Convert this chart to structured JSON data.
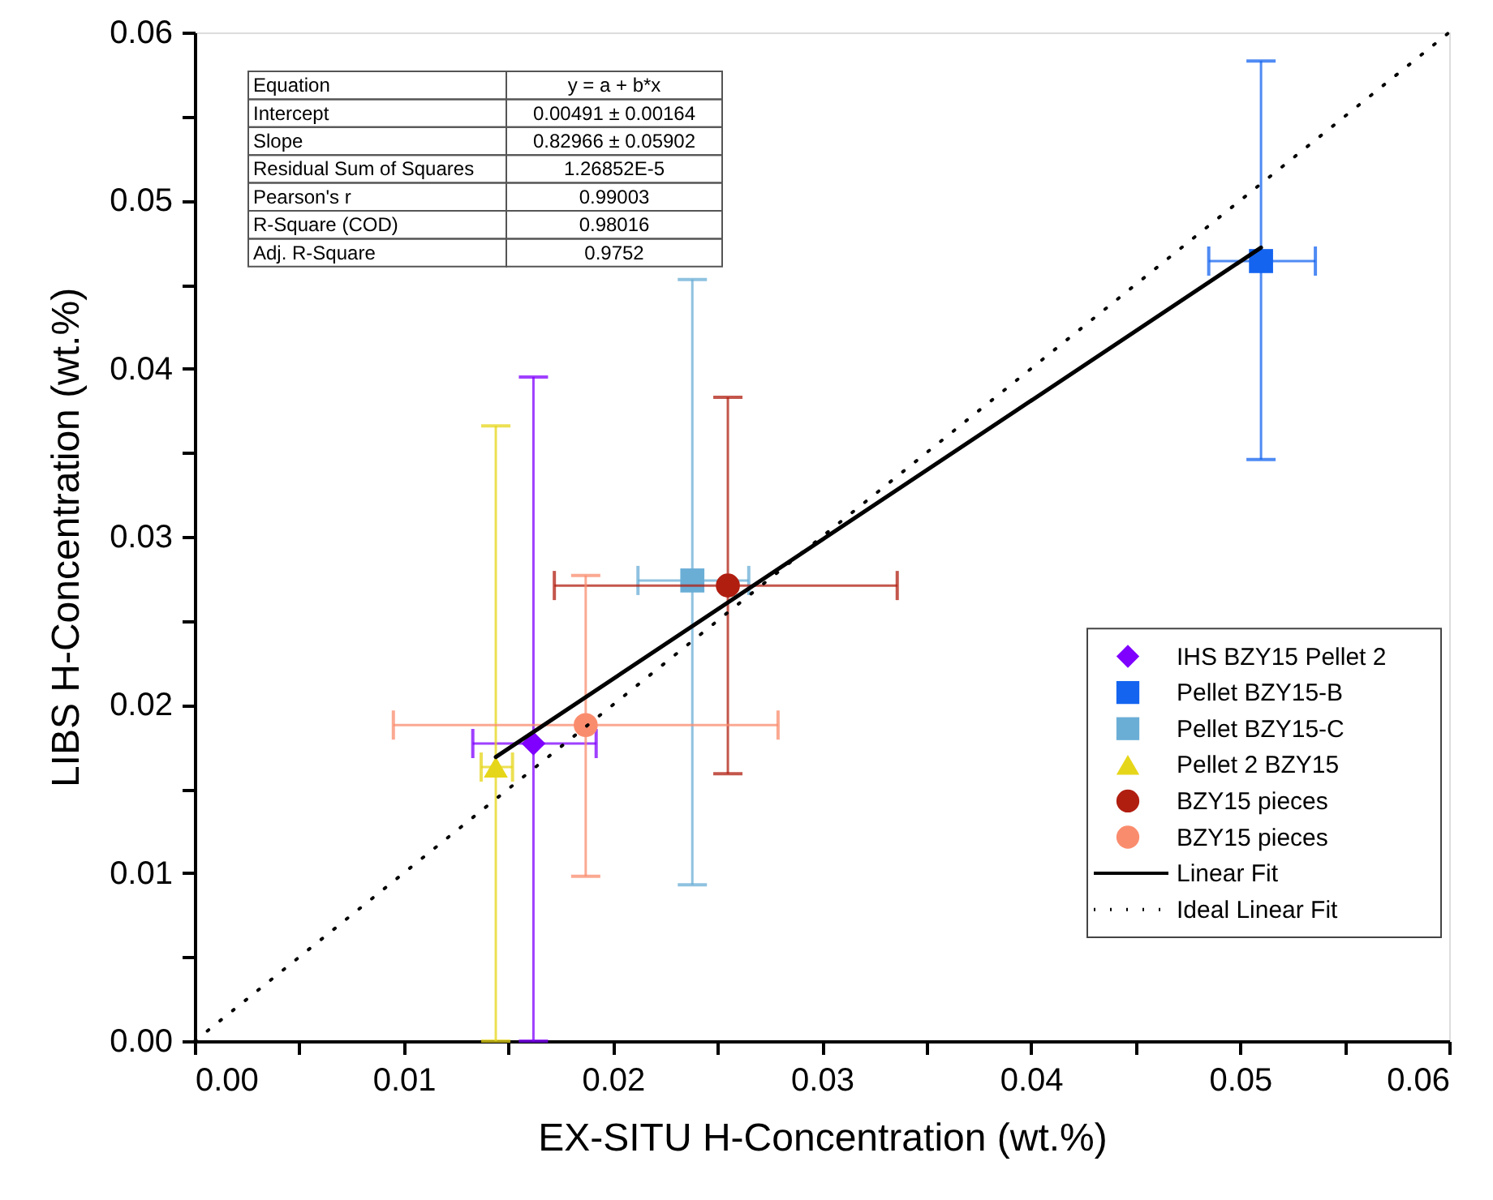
{
  "chart_data": {
    "type": "scatter",
    "xlabel": "EX-SITU H-Concentration (wt.%)",
    "ylabel": "LIBS H-Concentration (wt.%)",
    "xlim": [
      0,
      0.06
    ],
    "ylim": [
      0,
      0.06
    ],
    "xticks": [
      {
        "value": 0,
        "label": "0.00"
      },
      {
        "value": 0.005,
        "label": null
      },
      {
        "value": 0.01,
        "label": "0.01"
      },
      {
        "value": 0.015,
        "label": null
      },
      {
        "value": 0.02,
        "label": "0.02"
      },
      {
        "value": 0.025,
        "label": null
      },
      {
        "value": 0.03,
        "label": "0.03"
      },
      {
        "value": 0.035,
        "label": null
      },
      {
        "value": 0.04,
        "label": "0.04"
      },
      {
        "value": 0.045,
        "label": null
      },
      {
        "value": 0.05,
        "label": "0.05"
      },
      {
        "value": 0.055,
        "label": null
      },
      {
        "value": 0.06,
        "label": "0.06"
      }
    ],
    "yticks": [
      {
        "value": 0,
        "label": "0.00"
      },
      {
        "value": 0.005,
        "label": null
      },
      {
        "value": 0.01,
        "label": "0.01"
      },
      {
        "value": 0.015,
        "label": null
      },
      {
        "value": 0.02,
        "label": "0.02"
      },
      {
        "value": 0.025,
        "label": null
      },
      {
        "value": 0.03,
        "label": "0.03"
      },
      {
        "value": 0.035,
        "label": null
      },
      {
        "value": 0.04,
        "label": "0.04"
      },
      {
        "value": 0.045,
        "label": null
      },
      {
        "value": 0.05,
        "label": "0.05"
      },
      {
        "value": 0.055,
        "label": null
      },
      {
        "value": 0.06,
        "label": "0.06"
      }
    ],
    "grid": false,
    "legend": "bottom right",
    "series": [
      {
        "name": "IHS BZY15 Pellet 2",
        "marker": "diamond",
        "color": "#7f00ff",
        "x": [
          0.0162
        ],
        "values": [
          0.0177
        ],
        "errors": [
          [
            0,
            0.0395
          ]
        ],
        "xerrors": [
          [
            0.0133,
            0.0192
          ]
        ]
      },
      {
        "name": "Pellet BZY15-B",
        "marker": "square",
        "color": "#1464f0",
        "x": [
          0.051
        ],
        "values": [
          0.0464
        ],
        "errors": [
          [
            0.0346,
            0.0583
          ]
        ],
        "xerrors": [
          [
            0.0485,
            0.0536
          ]
        ]
      },
      {
        "name": "Pellet BZY15-C",
        "marker": "square",
        "color": "#6aaed6",
        "x": [
          0.0238
        ],
        "values": [
          0.0274
        ],
        "errors": [
          [
            0.0093,
            0.0453
          ]
        ],
        "xerrors": [
          [
            0.0212,
            0.0265
          ]
        ]
      },
      {
        "name": "Pellet 2 BZY15",
        "marker": "triangle",
        "color": "#e6d619",
        "x": [
          0.0144
        ],
        "values": [
          0.0163
        ],
        "errors": [
          [
            0,
            0.0366
          ]
        ],
        "xerrors": [
          [
            0.0137,
            0.0152
          ]
        ]
      },
      {
        "name": "BZY15 pieces",
        "marker": "circle",
        "color": "#b01e10",
        "x": [
          0.0255
        ],
        "values": [
          0.0271
        ],
        "errors": [
          [
            0.0159,
            0.0383
          ]
        ],
        "xerrors": [
          [
            0.0172,
            0.0336
          ]
        ]
      },
      {
        "name": "BZY15 pieces",
        "marker": "circle",
        "color": "#fa8c6e",
        "x": [
          0.0187
        ],
        "values": [
          0.0188
        ],
        "errors": [
          [
            0.0098,
            0.0277
          ]
        ],
        "xerrors": [
          [
            0.0095,
            0.0279
          ]
        ]
      },
      {
        "name": "Linear Fit",
        "type": "line",
        "line_style": "solid",
        "color": "#000000",
        "x": [
          0.0144,
          0.051
        ],
        "values": [
          0.0169,
          0.0472
        ]
      },
      {
        "name": "Ideal Linear Fit",
        "type": "line",
        "line_style": "dotted",
        "color": "#000000",
        "x": [
          0,
          0.06
        ],
        "values": [
          0,
          0.06
        ]
      }
    ],
    "annotations": [
      "Equation",
      "y = a + b*x",
      "Intercept",
      "0.00491 ± 0.00164",
      "Slope",
      "0.82966 ± 0.05902",
      "Residual Sum of Squares",
      "1.26852E-5",
      "Pearson's r",
      "0.99003",
      "R-Square (COD)",
      "0.98016",
      "Adj. R-Square",
      "0.9752"
    ]
  }
}
